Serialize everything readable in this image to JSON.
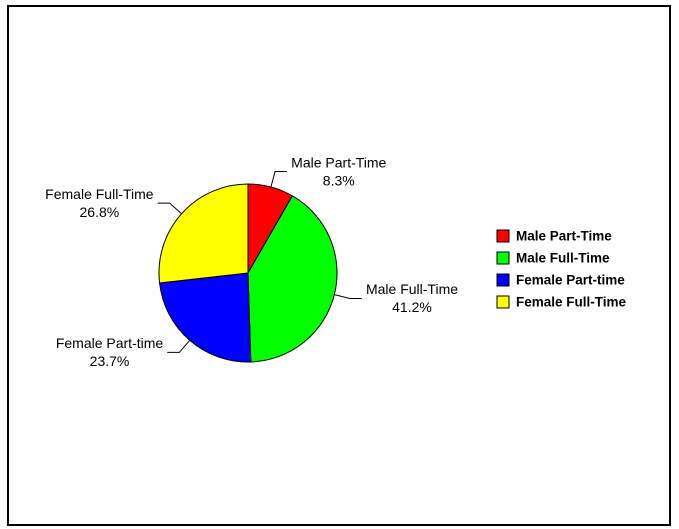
{
  "chart_data": {
    "type": "pie",
    "categories": [
      "Male Part-Time",
      "Male Full-Time",
      "Female Part-time",
      "Female Full-Time"
    ],
    "values": [
      8.3,
      41.2,
      23.7,
      26.8
    ],
    "value_labels": [
      "8.3%",
      "41.2%",
      "23.7%",
      "26.8%"
    ],
    "colors": [
      "#ff0000",
      "#00ff00",
      "#0000ff",
      "#ffff00"
    ],
    "legend": "right"
  }
}
